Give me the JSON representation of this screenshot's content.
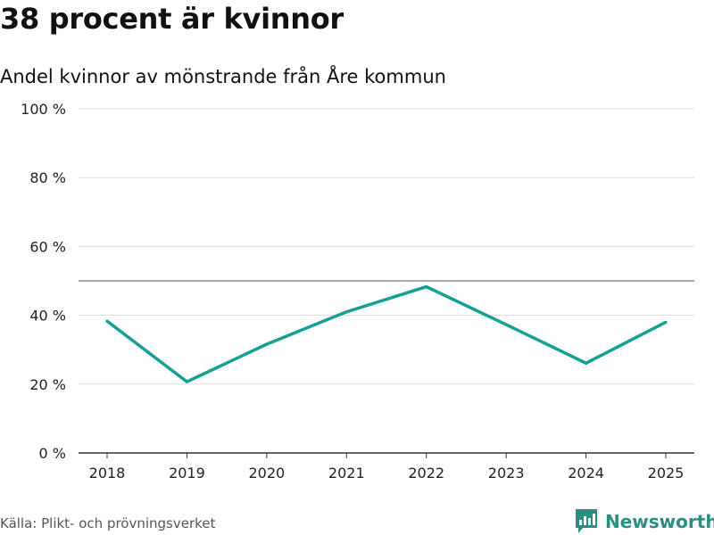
{
  "header": {
    "title": "38 procent är kvinnor",
    "subtitle": "Andel kvinnor av mönstrande från Åre kommun"
  },
  "footer": {
    "source": "Källa: Plikt- och prövningsverket",
    "brand": "Newsworthy"
  },
  "colors": {
    "line": "#16a094",
    "grid": "#dddddd",
    "reference": "#777777",
    "axis": "#333333",
    "brand": "#2a8f82"
  },
  "chart_data": {
    "type": "line",
    "title": "38 procent är kvinnor",
    "subtitle": "Andel kvinnor av mönstrande från Åre kommun",
    "xlabel": "",
    "ylabel": "",
    "categories": [
      "2018",
      "2019",
      "2020",
      "2021",
      "2022",
      "2023",
      "2024",
      "2025"
    ],
    "series": [
      {
        "name": "Andel kvinnor",
        "values": [
          38.3,
          20.7,
          31.6,
          41.0,
          48.3,
          37.3,
          26.1,
          38.0
        ]
      }
    ],
    "ylim": [
      0,
      100
    ],
    "yticks": [
      0,
      20,
      40,
      60,
      80,
      100
    ],
    "ytick_labels": [
      "0 %",
      "20 %",
      "40 %",
      "60 %",
      "80 %",
      "100 %"
    ],
    "reference_line": 50,
    "grid": true,
    "legend": "none"
  }
}
